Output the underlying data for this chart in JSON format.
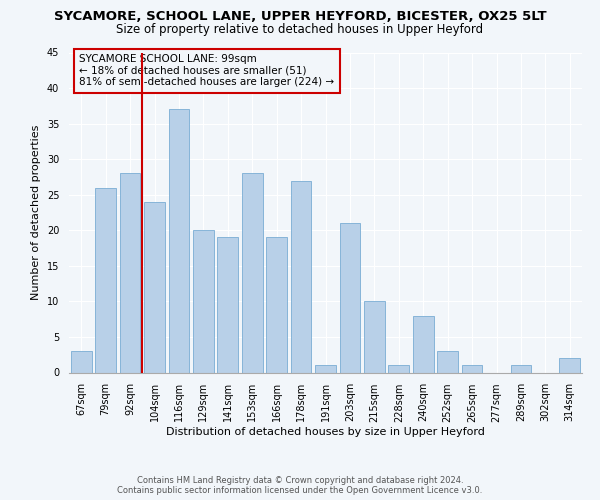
{
  "title": "SYCAMORE, SCHOOL LANE, UPPER HEYFORD, BICESTER, OX25 5LT",
  "subtitle": "Size of property relative to detached houses in Upper Heyford",
  "xlabel": "Distribution of detached houses by size in Upper Heyford",
  "ylabel": "Number of detached properties",
  "categories": [
    "67sqm",
    "79sqm",
    "92sqm",
    "104sqm",
    "116sqm",
    "129sqm",
    "141sqm",
    "153sqm",
    "166sqm",
    "178sqm",
    "191sqm",
    "203sqm",
    "215sqm",
    "228sqm",
    "240sqm",
    "252sqm",
    "265sqm",
    "277sqm",
    "289sqm",
    "302sqm",
    "314sqm"
  ],
  "values": [
    3,
    26,
    28,
    24,
    37,
    20,
    19,
    28,
    19,
    27,
    1,
    21,
    10,
    1,
    8,
    3,
    1,
    0,
    1,
    0,
    2
  ],
  "bar_color": "#b8d0e8",
  "bar_edge_color": "#7aadd4",
  "ylim": [
    0,
    45
  ],
  "yticks": [
    0,
    5,
    10,
    15,
    20,
    25,
    30,
    35,
    40,
    45
  ],
  "annotation_line_color": "#cc0000",
  "annotation_box_text_line1": "SYCAMORE SCHOOL LANE: 99sqm",
  "annotation_box_text_line2": "← 18% of detached houses are smaller (51)",
  "annotation_box_text_line3": "81% of semi-detached houses are larger (224) →",
  "annotation_box_color": "#cc0000",
  "footer_line1": "Contains HM Land Registry data © Crown copyright and database right 2024.",
  "footer_line2": "Contains public sector information licensed under the Open Government Licence v3.0.",
  "background_color": "#f2f6fa",
  "grid_color": "#ffffff",
  "title_fontsize": 9.5,
  "subtitle_fontsize": 8.5,
  "axis_label_fontsize": 8,
  "tick_fontsize": 7,
  "annotation_fontsize": 7.5,
  "footer_fontsize": 6
}
